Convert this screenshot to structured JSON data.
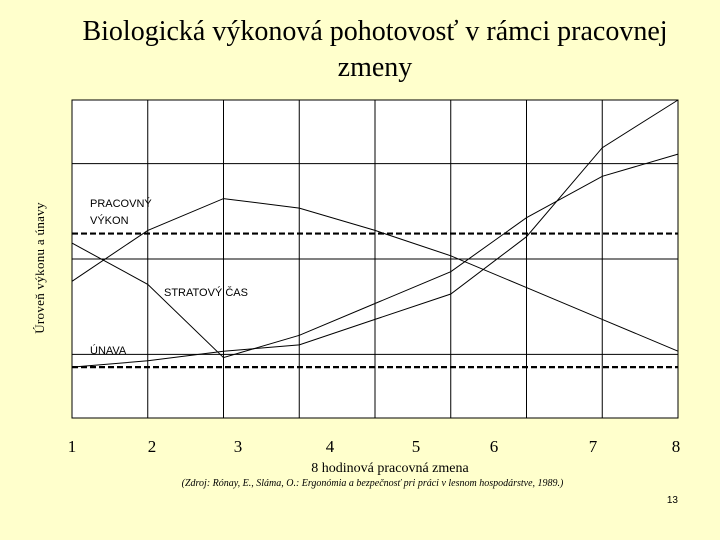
{
  "slide_number": "13",
  "chart_data": {
    "type": "line",
    "title": "Biologická výkonová pohotovosť v rámci pracovnej zmeny",
    "xlabel": "8 hodinová pracovná zmena",
    "ylabel": "Úroveň výkonu a únavy",
    "source": "(Zdroj: Rónay, E., Sláma, O.: Ergonómia a bezpečnosť pri práci v lesnom hospodárstve, 1989.)",
    "x_ticks": [
      "1",
      "2",
      "3",
      "4",
      "5",
      "6",
      "7",
      "8"
    ],
    "xlim": [
      0.5,
      8.5
    ],
    "ylim": [
      0,
      10
    ],
    "grid": true,
    "legend": "none",
    "annotations": {
      "performance": "PRACOVNÝ VÝKON",
      "lost_time": "STRATOVÝ ČAS",
      "fatigue": "ÚNAVA"
    },
    "reference_lines": [
      5.8,
      1.6
    ],
    "series": [
      {
        "x": [
          0.5,
          1.5,
          2.5,
          3.5,
          4.5,
          5.5,
          6.5,
          7.5,
          8.5
        ],
        "y": [
          4.3,
          5.9,
          6.9,
          6.6,
          5.9,
          5.1,
          4.1,
          3.1,
          2.1
        ]
      },
      {
        "x": [
          0.5,
          1.5,
          2.5,
          3.5,
          4.5,
          5.5,
          6.5,
          7.5,
          8.5
        ],
        "y": [
          5.5,
          4.2,
          1.9,
          2.6,
          3.6,
          4.6,
          6.3,
          7.6,
          8.3
        ]
      },
      {
        "x": [
          0.5,
          1.5,
          2.5,
          3.5,
          4.5,
          5.5,
          6.5,
          7.5,
          8.5
        ],
        "y": [
          1.6,
          1.8,
          2.1,
          2.3,
          3.1,
          3.9,
          5.7,
          8.5,
          10.0
        ]
      }
    ]
  }
}
